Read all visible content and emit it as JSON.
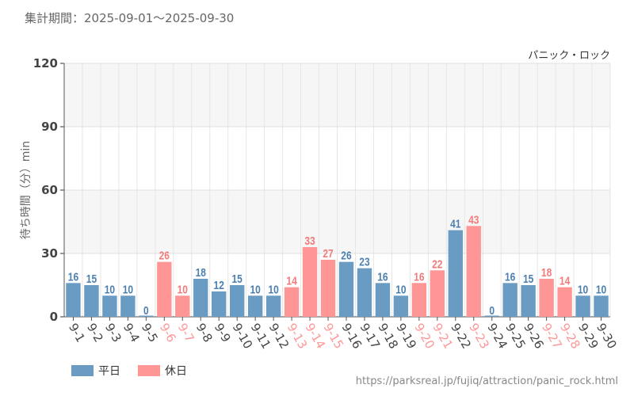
{
  "period_label": "集計期間：2025-09-01～2025-09-30",
  "source_url": "https://parksreal.jp/fujiq/attraction/panic_rock.html",
  "colors": {
    "weekday": "#6a9bc3",
    "holiday": "#ff9696",
    "weekday_text": "#4a7fb0",
    "holiday_text": "#f47a7a"
  },
  "chart_data": {
    "type": "bar",
    "title": "パニック・ロック",
    "ylabel": "待ち時間（分）min",
    "xlabel": "",
    "ylim": [
      0,
      120
    ],
    "yticks": [
      0,
      30,
      60,
      90,
      120
    ],
    "grid": true,
    "legend_placement": "bottom-left",
    "legend": [
      {
        "name": "平日",
        "key": "weekday"
      },
      {
        "name": "休日",
        "key": "holiday"
      }
    ],
    "categories": [
      "9-1",
      "9-2",
      "9-3",
      "9-4",
      "9-5",
      "9-6",
      "9-7",
      "9-8",
      "9-9",
      "9-10",
      "9-11",
      "9-12",
      "9-13",
      "9-14",
      "9-15",
      "9-16",
      "9-17",
      "9-18",
      "9-19",
      "9-20",
      "9-21",
      "9-22",
      "9-23",
      "9-24",
      "9-25",
      "9-26",
      "9-27",
      "9-28",
      "9-29",
      "9-30"
    ],
    "values": [
      16,
      15,
      10,
      10,
      0,
      26,
      10,
      18,
      12,
      15,
      10,
      10,
      14,
      33,
      27,
      26,
      23,
      16,
      10,
      16,
      22,
      41,
      43,
      0,
      16,
      15,
      18,
      14,
      10,
      10
    ],
    "holiday": [
      false,
      false,
      false,
      false,
      false,
      true,
      true,
      false,
      false,
      false,
      false,
      false,
      true,
      true,
      true,
      false,
      false,
      false,
      false,
      true,
      true,
      false,
      true,
      false,
      false,
      false,
      true,
      true,
      false,
      false
    ]
  }
}
